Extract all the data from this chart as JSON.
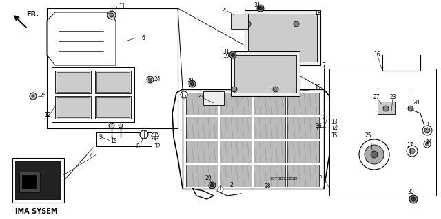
{
  "bg_color": "#ffffff",
  "fig_width": 6.4,
  "fig_height": 3.19,
  "dpi": 100,
  "text_ima": "IMA SYSEM",
  "text_code": "S3Y3B1325D",
  "label_fontsize": 5.5,
  "fr_text": "FR."
}
